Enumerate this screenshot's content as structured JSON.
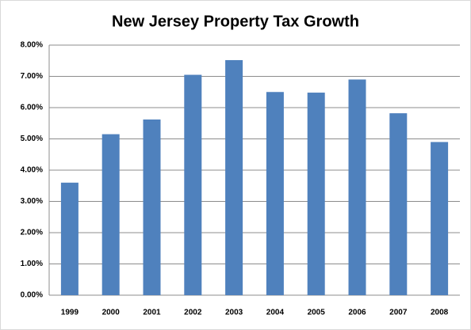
{
  "chart_data": {
    "type": "bar",
    "title": "New Jersey Property Tax Growth",
    "categories": [
      "1999",
      "2000",
      "2001",
      "2002",
      "2003",
      "2004",
      "2005",
      "2006",
      "2007",
      "2008"
    ],
    "values": [
      3.6,
      5.15,
      5.62,
      7.05,
      7.52,
      6.5,
      6.48,
      6.9,
      5.82,
      4.9
    ],
    "color": "#4f81bd",
    "ylim": [
      0,
      8
    ],
    "yticks": [
      {
        "value": 0,
        "label": "0.00%"
      },
      {
        "value": 1,
        "label": "1.00%"
      },
      {
        "value": 2,
        "label": "2.00%"
      },
      {
        "value": 3,
        "label": "3.00%"
      },
      {
        "value": 4,
        "label": "4.00%"
      },
      {
        "value": 5,
        "label": "5.00%"
      },
      {
        "value": 6,
        "label": "6.00%"
      },
      {
        "value": 7,
        "label": "7.00%"
      },
      {
        "value": 8,
        "label": "8.00%"
      }
    ],
    "grid": true
  }
}
